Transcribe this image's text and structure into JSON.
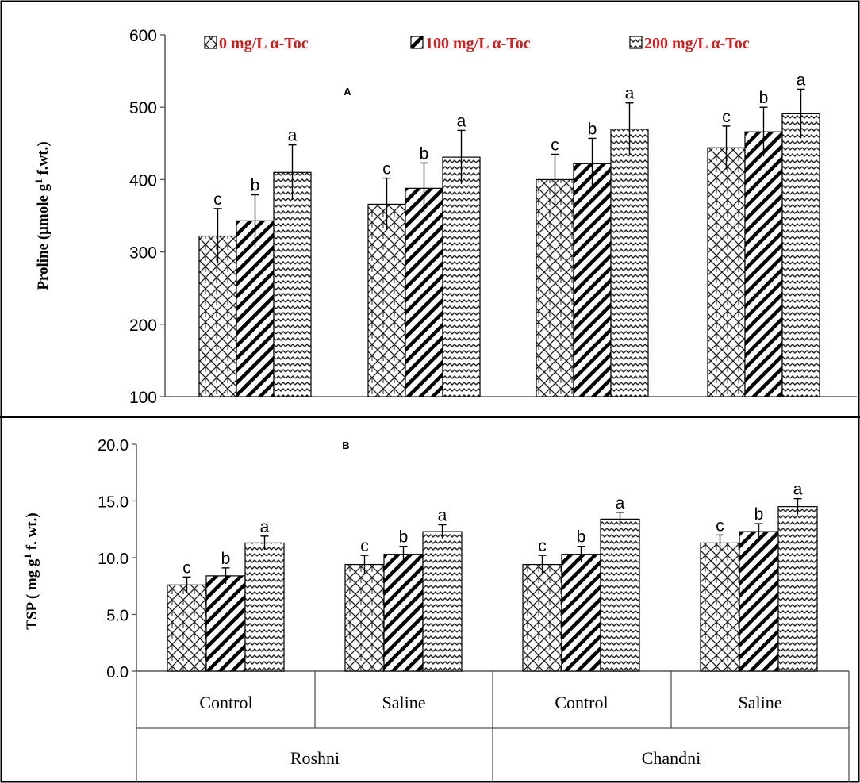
{
  "figure": {
    "legend": [
      {
        "label": "0 mg/L α-Toc",
        "pattern": "brick"
      },
      {
        "label": "100 mg/L α-Toc",
        "pattern": "diag"
      },
      {
        "label": "200 mg/L α-Toc",
        "pattern": "wave"
      }
    ],
    "legend_color": "#cc1f1f",
    "groups": [
      "Control",
      "Saline",
      "Control",
      "Saline"
    ],
    "cultivars": [
      "Roshni",
      "Chandni"
    ]
  },
  "chart_data": [
    {
      "type": "bar",
      "panel_label": "A",
      "ylabel": "Proline (μmole g¹ f.wt.)",
      "ylabel_main": "Proline (μmole g",
      "ylabel_sup": "1",
      "ylabel_tail": " f.wt.)",
      "ylim": [
        100,
        600
      ],
      "yticks": [
        100,
        200,
        300,
        400,
        500,
        600
      ],
      "ytick_labels": [
        "100",
        "200",
        "300",
        "400",
        "500",
        "600"
      ],
      "categories": [
        "Roshni Control",
        "Roshni Saline",
        "Chandni Control",
        "Chandni Saline"
      ],
      "series": [
        {
          "name": "0 mg/L α-Toc",
          "values": [
            322,
            366,
            400,
            444
          ],
          "errors": [
            38,
            36,
            35,
            30
          ],
          "letters": [
            "c",
            "c",
            "c",
            "c"
          ]
        },
        {
          "name": "100 mg/L α-Toc",
          "values": [
            343,
            388,
            422,
            466
          ],
          "errors": [
            36,
            35,
            35,
            34
          ],
          "letters": [
            "b",
            "b",
            "b",
            "b"
          ]
        },
        {
          "name": "200 mg/L α-Toc",
          "values": [
            410,
            431,
            470,
            491
          ],
          "errors": [
            38,
            37,
            36,
            34
          ],
          "letters": [
            "a",
            "a",
            "a",
            "a"
          ]
        }
      ]
    },
    {
      "type": "bar",
      "panel_label": "B",
      "ylabel": "TSP ( mg g¹ f. wt.)",
      "ylabel_main": "TSP ( mg g",
      "ylabel_sup": "1",
      "ylabel_tail": " f. wt.)",
      "ylim": [
        0,
        20
      ],
      "yticks": [
        0,
        5,
        10,
        15,
        20
      ],
      "ytick_labels": [
        "0.0",
        "5.0",
        "10.0",
        "15.0",
        "20.0"
      ],
      "categories": [
        "Roshni Control",
        "Roshni Saline",
        "Chandni Control",
        "Chandni Saline"
      ],
      "series": [
        {
          "name": "0 mg/L α-Toc",
          "values": [
            7.6,
            9.4,
            9.4,
            11.3
          ],
          "errors": [
            0.7,
            0.8,
            0.8,
            0.7
          ],
          "letters": [
            "c",
            "c",
            "c",
            "c"
          ]
        },
        {
          "name": "100 mg/L α-Toc",
          "values": [
            8.4,
            10.3,
            10.3,
            12.3
          ],
          "errors": [
            0.7,
            0.7,
            0.7,
            0.7
          ],
          "letters": [
            "b",
            "b",
            "b",
            "b"
          ]
        },
        {
          "name": "200 mg/L α-Toc",
          "values": [
            11.3,
            12.3,
            13.4,
            14.5
          ],
          "errors": [
            0.6,
            0.6,
            0.6,
            0.7
          ],
          "letters": [
            "a",
            "a",
            "a",
            "a"
          ]
        }
      ]
    }
  ]
}
